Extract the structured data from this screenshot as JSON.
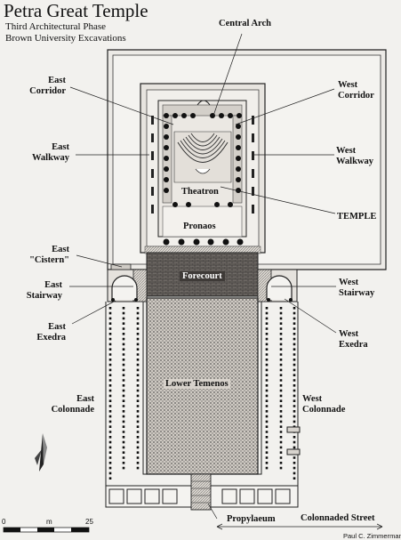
{
  "title": {
    "main": "Petra Great Temple",
    "line2": "Third Architectural Phase",
    "line3": "Brown University Excavations"
  },
  "labels": {
    "central_arch": "Central Arch",
    "east_corridor": [
      "East",
      "Corridor"
    ],
    "west_corridor": [
      "West",
      "Corridor"
    ],
    "east_walkway": [
      "East",
      "Walkway"
    ],
    "west_walkway": [
      "West",
      "Walkway"
    ],
    "temple": "TEMPLE",
    "east_cistern": [
      "East",
      "\"Cistern\""
    ],
    "east_stairway": [
      "East",
      "Stairway"
    ],
    "west_stairway": [
      "West",
      "Stairway"
    ],
    "east_exedra": [
      "East",
      "Exedra"
    ],
    "west_exedra": [
      "West",
      "Exedra"
    ],
    "east_colonnade": [
      "East",
      "Colonnade"
    ],
    "west_colonnade": [
      "West",
      "Colonnade"
    ],
    "propylaeum": "Propylaeum",
    "colonnaded_street": "Colonnaded Street"
  },
  "inner_labels": {
    "theatron": "Theatron",
    "pronaos": "Pronaos",
    "forecourt": "Forecourt",
    "lower_temenos": "Lower Temenos"
  },
  "scale": {
    "start": "0",
    "unit": "m",
    "end": "25"
  },
  "credit": "Paul C. Zimmerman"
}
